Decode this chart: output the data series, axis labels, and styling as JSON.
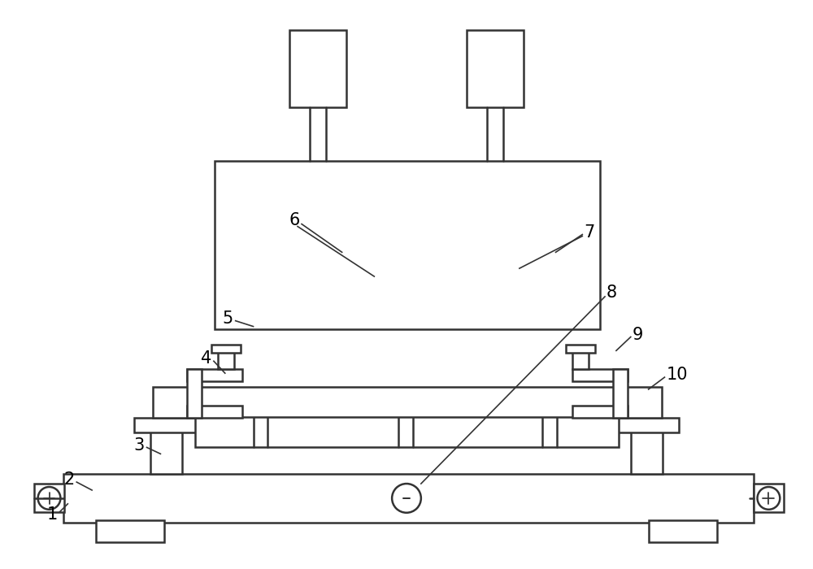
{
  "bg_color": "#ffffff",
  "line_color": "#333333",
  "line_width": 1.8,
  "label_fontsize": 15
}
